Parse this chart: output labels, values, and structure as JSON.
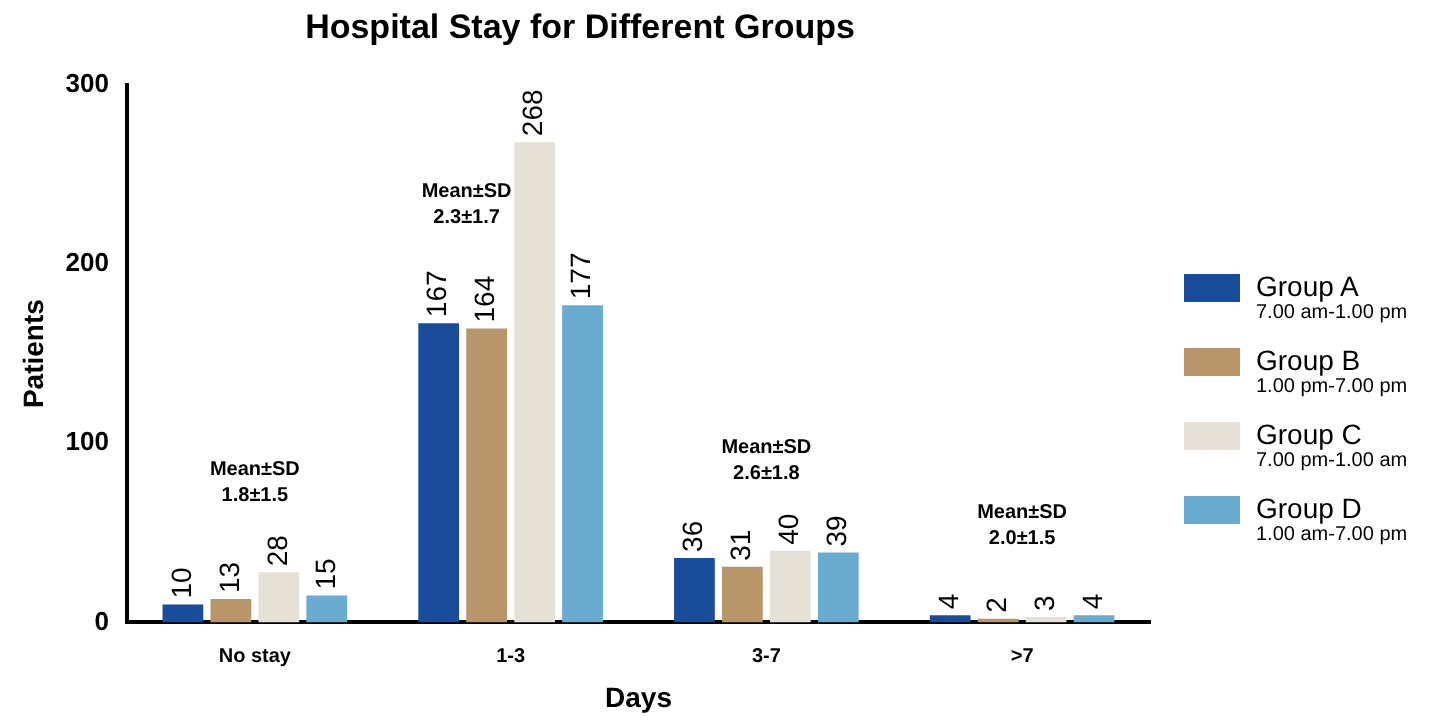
{
  "chart_data": {
    "type": "bar",
    "title": "Hospital Stay for Different Groups",
    "xlabel": "Days",
    "ylabel": "Patients",
    "categories": [
      "No stay",
      "1-3",
      "3-7",
      ">7"
    ],
    "series": [
      {
        "name": "Group A\n7.00 am-1.00 pm",
        "color": "#1a4c9c",
        "values": [
          10,
          167,
          36,
          4
        ]
      },
      {
        "name": "Group B\n1.00 pm-7.00 pm",
        "color": "#b8966a",
        "values": [
          13,
          164,
          31,
          2
        ]
      },
      {
        "name": "Group C\n7.00 pm-1.00 am",
        "color": "#e6e0d6",
        "values": [
          28,
          268,
          40,
          3
        ]
      },
      {
        "name": "Group D\n1.00 am-7.00 pm",
        "color": "#6aaccf",
        "values": [
          15,
          177,
          39,
          4
        ]
      }
    ],
    "ylim": [
      0,
      300
    ],
    "yticks": [
      0,
      100,
      200,
      300
    ],
    "grid": false,
    "legend": "right",
    "data_labels": true,
    "annotations": [
      "Mean±SD\n1.8±1.5",
      "Mean±SD\n2.3±1.7",
      "Mean±SD\n2.6±1.8",
      "Mean±SD\n2.0±1.5"
    ]
  }
}
